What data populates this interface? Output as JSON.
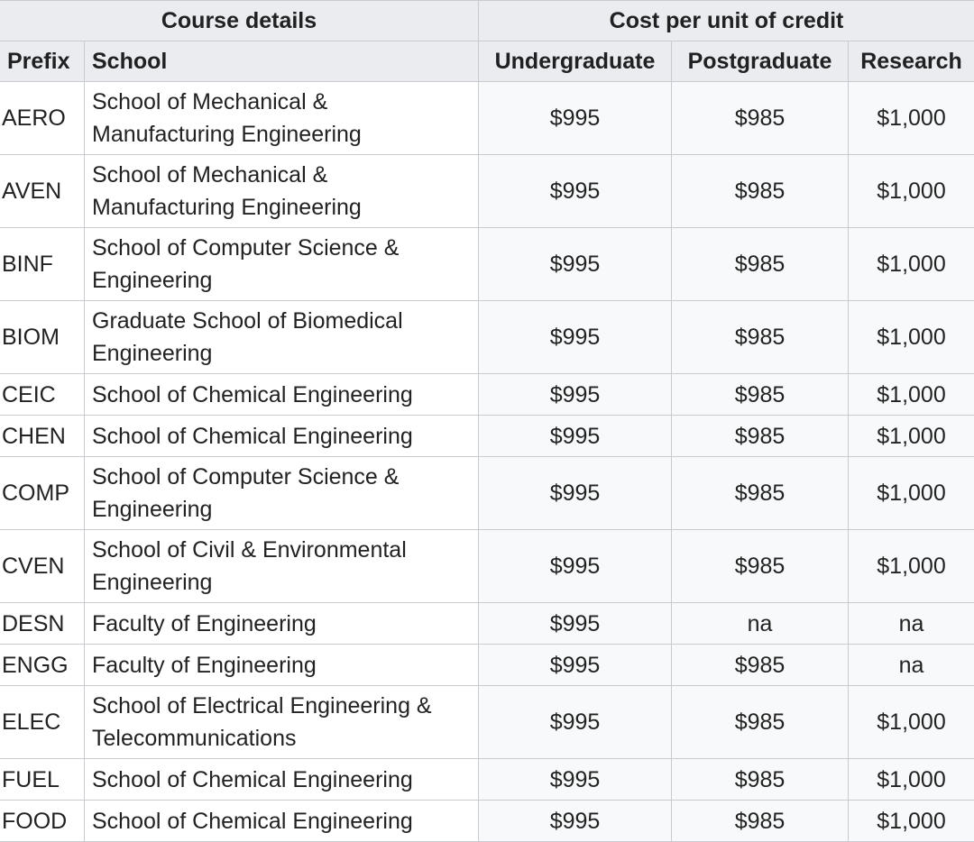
{
  "table": {
    "group_headers": {
      "course_details": "Course details",
      "cost_per_unit": "Cost per unit of credit"
    },
    "column_headers": {
      "prefix": "Prefix",
      "school": "School",
      "undergraduate": "Undergraduate",
      "postgraduate": "Postgraduate",
      "research": "Research"
    },
    "rows": [
      {
        "prefix": "AERO",
        "school_line1": "School of Mechanical &",
        "school_line2": "Manufacturing Engineering",
        "undergraduate": "$995",
        "postgraduate": "$985",
        "research": "$1,000"
      },
      {
        "prefix": "AVEN",
        "school_line1": "School of Mechanical &",
        "school_line2": "Manufacturing Engineering",
        "undergraduate": "$995",
        "postgraduate": "$985",
        "research": "$1,000"
      },
      {
        "prefix": "BINF",
        "school_line1": "School of Computer Science &",
        "school_line2": "Engineering",
        "undergraduate": "$995",
        "postgraduate": "$985",
        "research": "$1,000"
      },
      {
        "prefix": "BIOM",
        "school_line1": "Graduate School of Biomedical",
        "school_line2": "Engineering",
        "undergraduate": "$995",
        "postgraduate": "$985",
        "research": "$1,000"
      },
      {
        "prefix": "CEIC",
        "school_line1": "School of Chemical Engineering",
        "school_line2": "",
        "undergraduate": "$995",
        "postgraduate": "$985",
        "research": "$1,000"
      },
      {
        "prefix": "CHEN",
        "school_line1": "School of Chemical Engineering",
        "school_line2": "",
        "undergraduate": "$995",
        "postgraduate": "$985",
        "research": "$1,000"
      },
      {
        "prefix": "COMP",
        "school_line1": "School of Computer Science &",
        "school_line2": "Engineering",
        "undergraduate": "$995",
        "postgraduate": "$985",
        "research": "$1,000"
      },
      {
        "prefix": "CVEN",
        "school_line1": "School of Civil & Environmental",
        "school_line2": "Engineering",
        "undergraduate": "$995",
        "postgraduate": "$985",
        "research": "$1,000"
      },
      {
        "prefix": "DESN",
        "school_line1": "Faculty of Engineering",
        "school_line2": "",
        "undergraduate": "$995",
        "postgraduate": "na",
        "research": "na"
      },
      {
        "prefix": "ENGG",
        "school_line1": "Faculty of Engineering",
        "school_line2": "",
        "undergraduate": "$995",
        "postgraduate": "$985",
        "research": "na"
      },
      {
        "prefix": "ELEC",
        "school_line1": "School of Electrical Engineering &",
        "school_line2": "Telecommunications",
        "undergraduate": "$995",
        "postgraduate": "$985",
        "research": "$1,000"
      },
      {
        "prefix": "FUEL",
        "school_line1": "School of Chemical Engineering",
        "school_line2": "",
        "undergraduate": "$995",
        "postgraduate": "$985",
        "research": "$1,000"
      },
      {
        "prefix": "FOOD",
        "school_line1": "School of Chemical Engineering",
        "school_line2": "",
        "undergraduate": "$995",
        "postgraduate": "$985",
        "research": "$1,000"
      }
    ]
  }
}
